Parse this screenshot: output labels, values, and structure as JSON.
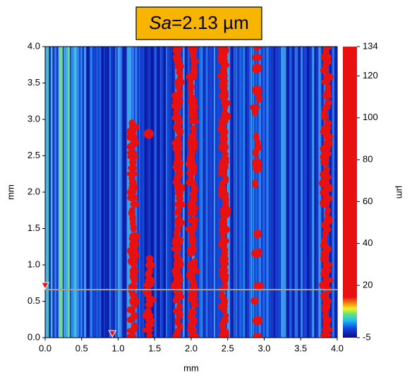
{
  "chart_data": {
    "type": "surface-map",
    "title_parts": [
      "Sa",
      "=2.13 µm"
    ],
    "x_label": "mm",
    "y_label": "mm",
    "colorbar_label": "µm",
    "xlim": [
      0,
      4
    ],
    "ylim": [
      0,
      4
    ],
    "xticks": [
      {
        "value": 0,
        "label": "0.0"
      },
      0.5,
      {
        "value": 1,
        "label": "1.0"
      },
      1.5,
      {
        "value": 2,
        "label": "2.0"
      },
      2.5,
      {
        "value": 3,
        "label": "3.0"
      },
      3.5,
      {
        "value": 4,
        "label": "4.0"
      }
    ],
    "yticks": [
      {
        "value": 0,
        "label": "0.0"
      },
      0.5,
      {
        "value": 1,
        "label": "1.0"
      },
      1.5,
      {
        "value": 2,
        "label": "2.0"
      },
      2.5,
      {
        "value": 3,
        "label": "3.0"
      },
      3.5,
      {
        "value": 4,
        "label": "4.0"
      }
    ],
    "clim": [
      -5,
      134
    ],
    "cticks": [
      134,
      120,
      100,
      80,
      60,
      40,
      20,
      -5
    ],
    "colors": [
      "#0a0a80",
      "#1040e0",
      "#20c0f0",
      "#60e080",
      "#f0f020",
      "#f08010",
      "#e81010",
      "#e81010"
    ],
    "cursor": {
      "y": 0.66,
      "x": 0.92
    }
  }
}
